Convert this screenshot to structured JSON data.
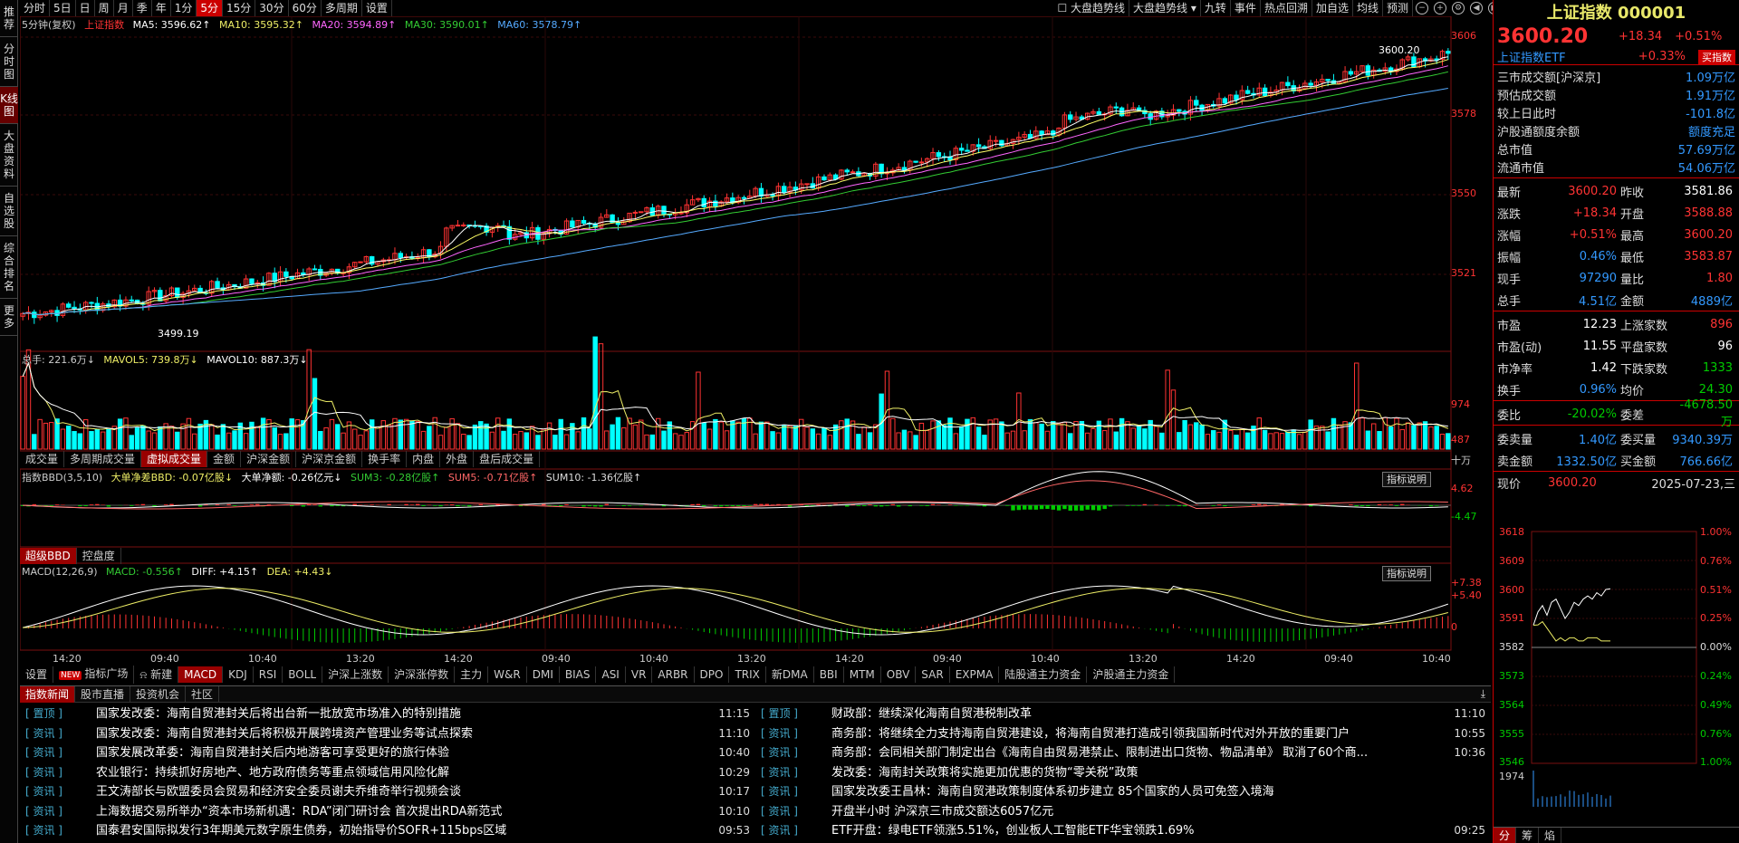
{
  "left_sidebar": [
    "推荐",
    "分时图",
    "K线图",
    "大盘资料",
    "自选股",
    "综合排名",
    "更多"
  ],
  "period_toolbar": {
    "items": [
      "分时",
      "5日",
      "日",
      "周",
      "月",
      "季",
      "年",
      "1分",
      "5分",
      "15分",
      "30分",
      "60分",
      "多周期",
      "设置"
    ],
    "active": "5分",
    "right_items": [
      "大盘趋势线",
      "大盘趋势线",
      "九转",
      "事件",
      "热点回溯",
      "加自选",
      "均线",
      "预测"
    ],
    "trend_checkbox": "大盘趋势线"
  },
  "kline": {
    "info": {
      "period": "5分钟(复权)",
      "name": "上证指数",
      "ma5": "MA5: 3596.62↑",
      "ma10": "MA10: 3595.32↑",
      "ma20": "MA20: 3594.89↑",
      "ma30": "MA30: 3590.01↑",
      "ma60": "MA60: 3578.79↑"
    },
    "axis": [
      "3606",
      "3578",
      "3550",
      "3521"
    ],
    "high_label": "3600.20",
    "low_label": "3499.19"
  },
  "volume": {
    "info": {
      "total": "总手: 221.6万↓",
      "mavol5": "MAVOL5: 739.8万↓",
      "mavol10": "MAVOL10: 887.3万↓"
    },
    "axis": [
      "974",
      "487",
      "十万"
    ],
    "tabs": [
      "成交量",
      "多周期成交量",
      "虚拟成交量",
      "金额",
      "沪深金额",
      "沪深京金额",
      "换手率",
      "内盘",
      "外盘",
      "盘后成交量"
    ],
    "active": "虚拟成交量"
  },
  "bbd": {
    "info": {
      "name": "指数BBD(3,5,10)",
      "big": "大单净差BBD: -0.07亿股↓",
      "net": "大单净额: -0.26亿元↓",
      "sum3": "SUM3: -0.28亿股↑",
      "sum5": "SUM5: -0.71亿股↑",
      "sum10": "SUM10: -1.36亿股↑"
    },
    "axis": [
      "4.62",
      "-4.47"
    ],
    "tabs": [
      "超级BBD",
      "控盘度"
    ],
    "active": "超级BBD",
    "explain": "指标说明"
  },
  "macd": {
    "info": {
      "name": "MACD(12,26,9)",
      "macd": "MACD: -0.556↑",
      "diff": "DIFF: +4.15↑",
      "dea": "DEA: +4.43↓"
    },
    "axis": [
      "+7.38",
      "+5.40",
      "0"
    ],
    "explain": "指标说明",
    "time_labels": [
      "14:20",
      "09:40",
      "10:40",
      "13:20",
      "14:20",
      "09:40",
      "10:40",
      "13:20",
      "14:20",
      "09:40",
      "10:40",
      "13:20",
      "14:20",
      "09:40",
      "10:40"
    ]
  },
  "indicator_tabs": {
    "items": [
      "设置",
      "指标广场",
      "新建",
      "MACD",
      "KDJ",
      "RSI",
      "BOLL",
      "沪深上涨数",
      "沪深涨停数",
      "主力",
      "W&R",
      "DMI",
      "BIAS",
      "ASI",
      "VR",
      "ARBR",
      "DPO",
      "TRIX",
      "新DMA",
      "BBI",
      "MTM",
      "OBV",
      "SAR",
      "EXPMA",
      "陆股通主力资金",
      "沪股通主力资金"
    ],
    "active": "MACD",
    "new_badge": "NEW"
  },
  "news": {
    "tabs": [
      "指数新闻",
      "股市直播",
      "投资机会",
      "社区"
    ],
    "active": "指数新闻",
    "left": [
      {
        "tag": "[ 置顶 ]",
        "title": "国家发改委：海南自贸港封关后将出台新一批放宽市场准入的特别措施",
        "time": "11:15"
      },
      {
        "tag": "[ 资讯 ]",
        "title": "国家发改委：海南自贸港封关后将积极开展跨境资产管理业务等试点探索",
        "time": "11:10"
      },
      {
        "tag": "[ 资讯 ]",
        "title": "国家发展改革委：海南自贸港封关后内地游客可享受更好的旅行体验",
        "time": "10:40"
      },
      {
        "tag": "[ 资讯 ]",
        "title": "农业银行：持续抓好房地产、地方政府债务等重点领域信用风险化解",
        "time": "10:29"
      },
      {
        "tag": "[ 资讯 ]",
        "title": "王文涛部长与欧盟委员会贸易和经济安全委员谢夫乔维奇举行视频会谈",
        "time": "10:17"
      },
      {
        "tag": "[ 资讯 ]",
        "title": "上海数据交易所举办“资本市场新机遇：RDA”闭门研讨会 首次提出RDA新范式",
        "time": "10:10"
      },
      {
        "tag": "[ 资讯 ]",
        "title": "国泰君安国际拟发行3年期美元数字原生债券，初始指导价SOFR+115bps区域",
        "time": "09:53"
      }
    ],
    "right": [
      {
        "tag": "[ 置顶 ]",
        "title": "财政部：继续深化海南自贸港税制改革",
        "time": "11:10"
      },
      {
        "tag": "[ 资讯 ]",
        "title": "商务部：将继续全力支持海南自贸港建设，将海南自贸港打造成引领我国新时代对外开放的重要门户",
        "time": "10:55"
      },
      {
        "tag": "[ 资讯 ]",
        "title": "商务部：会同相关部门制定出台《海南自由贸易港禁止、限制进出口货物、物品清单》 取消了60个商...",
        "time": "10:36"
      },
      {
        "tag": "[ 资讯 ]",
        "title": "发改委：海南封关政策将实施更加优惠的货物“零关税”政策",
        "time": ""
      },
      {
        "tag": "[ 资讯 ]",
        "title": "国家发改委王昌林：海南自贸港政策制度体系初步建立 85个国家的人员可免签入境海",
        "time": ""
      },
      {
        "tag": "[ 资讯 ]",
        "title": "开盘半小时 沪深京三市成交额达6057亿元",
        "time": ""
      },
      {
        "tag": "[ 资讯 ]",
        "title": "ETF开盘：绿电ETF领涨5.51%，创业板人工智能ETF华宝领跌1.69%",
        "time": "09:25"
      }
    ]
  },
  "quote": {
    "title": "上证指数 000001",
    "price": "3600.20",
    "change": "+18.34",
    "pct": "+0.51%",
    "etf_name": "上证指数ETF",
    "etf_pct": "+0.33%",
    "etf_btn": "买指数",
    "stats": [
      {
        "k": "三市成交额[沪深京]",
        "v": "1.09万亿"
      },
      {
        "k": "预估成交额",
        "v": "1.91万亿"
      },
      {
        "k": "较上日此时",
        "v": "-101.8亿"
      },
      {
        "k": "沪股通额度余额",
        "v": "额度充足"
      },
      {
        "k": "总市值",
        "v": "57.69万亿"
      },
      {
        "k": "流通市值",
        "v": "54.06万亿"
      }
    ],
    "rows1": [
      {
        "l": "最新",
        "a": "3600.20",
        "ac": "red",
        "l2": "昨收",
        "b": "3581.86",
        "bc": "white"
      },
      {
        "l": "涨跌",
        "a": "+18.34",
        "ac": "red",
        "l2": "开盘",
        "b": "3588.88",
        "bc": "red"
      },
      {
        "l": "涨幅",
        "a": "+0.51%",
        "ac": "red",
        "l2": "最高",
        "b": "3600.20",
        "bc": "red"
      },
      {
        "l": "振幅",
        "a": "0.46%",
        "ac": "blue",
        "l2": "最低",
        "b": "3583.87",
        "bc": "red"
      },
      {
        "l": "现手",
        "a": "97290",
        "ac": "blue",
        "l2": "量比",
        "b": "1.80",
        "bc": "red"
      },
      {
        "l": "总手",
        "a": "4.51亿",
        "ac": "blue",
        "l2": "金额",
        "b": "4889亿",
        "bc": "blue"
      }
    ],
    "rows2": [
      {
        "l": "市盈",
        "a": "12.23",
        "ac": "white",
        "l2": "上涨家数",
        "b": "896",
        "bc": "red"
      },
      {
        "l": "市盈(动)",
        "a": "11.55",
        "ac": "white",
        "l2": "平盘家数",
        "b": "96",
        "bc": "white"
      },
      {
        "l": "市净率",
        "a": "1.42",
        "ac": "white",
        "l2": "下跌家数",
        "b": "1333",
        "bc": "green"
      },
      {
        "l": "换手",
        "a": "0.96%",
        "ac": "blue",
        "l2": "均价",
        "b": "24.30",
        "bc": "green"
      }
    ],
    "rows3": [
      {
        "l": "委比",
        "a": "-20.02%",
        "ac": "green",
        "l2": "委差",
        "b": "-4678.50万",
        "bc": "green"
      }
    ],
    "rows4": [
      {
        "l": "委卖量",
        "a": "1.40亿",
        "ac": "blue",
        "l2": "委买量",
        "b": "9340.39万",
        "bc": "blue"
      },
      {
        "l": "卖金额",
        "a": "1332.50亿",
        "ac": "blue",
        "l2": "买金额",
        "b": "766.66亿",
        "bc": "blue"
      }
    ],
    "now_label": "现价",
    "now_price": "3600.20",
    "date": "2025-07-23,三",
    "mini_axis_left": [
      "3618",
      "3609",
      "3600",
      "3591",
      "3582",
      "3573",
      "3564",
      "3555",
      "3546",
      "1974"
    ],
    "mini_axis_right": [
      "1.00%",
      "0.76%",
      "0.51%",
      "0.25%",
      "0.00%",
      "0.24%",
      "0.49%",
      "0.76%",
      "1.00%"
    ],
    "foot_tabs": [
      "分",
      "筹",
      "焰"
    ],
    "foot_active": "分"
  },
  "colors": {
    "up": "#ff3333",
    "down": "#00ffff",
    "ma5": "#ffffff",
    "ma10": "#ffff66",
    "ma20": "#ff66ff",
    "ma30": "#33cc33",
    "ma60": "#55aaff"
  }
}
